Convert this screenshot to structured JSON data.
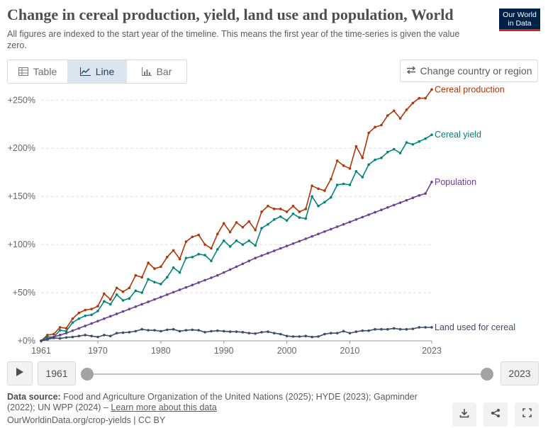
{
  "header": {
    "title": "Change in cereal production, yield, land use and population, World",
    "subtitle": "All figures are indexed to the start year of the timeline. This means the first year of the time-series is given the value zero.",
    "logo_line1": "Our World",
    "logo_line2": "in Data"
  },
  "tabs": [
    {
      "label": "Table",
      "icon": "table-icon",
      "active": false
    },
    {
      "label": "Line",
      "icon": "line-chart-icon",
      "active": true
    },
    {
      "label": "Bar",
      "icon": "bar-chart-icon",
      "active": false
    }
  ],
  "change_country_label": "Change country or region",
  "timeline": {
    "start_year": "1961",
    "end_year": "2023"
  },
  "footer": {
    "source_prefix": "Data source:",
    "source_text": "Food and Agriculture Organization of the United Nations (2025); HYDE (2023); Gapminder (2022); UN WPP (2024) –",
    "learn_more": "Learn more about this data",
    "url_text": "OurWorldinData.org/crop-yields | CC BY"
  },
  "colors": {
    "cereal_production": "#b13507",
    "cereal_yield": "#00847e",
    "population": "#6d3e91",
    "land_used": "#3c4e66"
  },
  "chart_data": {
    "type": "line",
    "x": [
      1961,
      1962,
      1963,
      1964,
      1965,
      1966,
      1967,
      1968,
      1969,
      1970,
      1971,
      1972,
      1973,
      1974,
      1975,
      1976,
      1977,
      1978,
      1979,
      1980,
      1981,
      1982,
      1983,
      1984,
      1985,
      1986,
      1987,
      1988,
      1989,
      1990,
      1991,
      1992,
      1993,
      1994,
      1995,
      1996,
      1997,
      1998,
      1999,
      2000,
      2001,
      2002,
      2003,
      2004,
      2005,
      2006,
      2007,
      2008,
      2009,
      2010,
      2011,
      2012,
      2013,
      2014,
      2015,
      2016,
      2017,
      2018,
      2019,
      2020,
      2021,
      2022,
      2023
    ],
    "xticks": [
      1961,
      1970,
      1980,
      1990,
      2000,
      2010,
      2023
    ],
    "yticks": [
      0,
      50,
      100,
      150,
      200,
      250
    ],
    "ytick_labels": [
      "+0%",
      "+50%",
      "+100%",
      "+150%",
      "+200%",
      "+250%"
    ],
    "ylim": [
      0,
      262
    ],
    "grid": true,
    "series": [
      {
        "name": "Cereal production",
        "color_key": "cereal_production",
        "values": [
          0,
          6,
          7,
          14,
          13,
          23,
          29,
          32,
          33,
          36,
          49,
          43,
          55,
          51,
          55,
          68,
          66,
          81,
          75,
          77,
          87,
          94,
          85,
          103,
          108,
          110,
          100,
          96,
          111,
          122,
          113,
          123,
          118,
          124,
          115,
          134,
          140,
          137,
          137,
          134,
          140,
          134,
          137,
          161,
          158,
          156,
          168,
          187,
          182,
          179,
          202,
          190,
          216,
          222,
          224,
          234,
          239,
          231,
          240,
          247,
          252,
          252,
          261
        ]
      },
      {
        "name": "Cereal yield",
        "color_key": "cereal_yield",
        "values": [
          0,
          4,
          4,
          11,
          10,
          19,
          23,
          26,
          27,
          31,
          41,
          38,
          48,
          42,
          44,
          52,
          50,
          64,
          61,
          59,
          66,
          76,
          71,
          86,
          87,
          90,
          89,
          83,
          95,
          104,
          98,
          104,
          100,
          104,
          99,
          117,
          121,
          126,
          129,
          125,
          132,
          128,
          127,
          150,
          140,
          144,
          149,
          162,
          163,
          162,
          176,
          170,
          183,
          188,
          190,
          196,
          199,
          195,
          206,
          204,
          207,
          210,
          214
        ]
      },
      {
        "name": "Population",
        "color_key": "population",
        "values": [
          0,
          2,
          4,
          6,
          8,
          10.5,
          13,
          15.5,
          18,
          20.5,
          23,
          25.5,
          28,
          30.5,
          33,
          35.5,
          38,
          40.5,
          43,
          45.5,
          48,
          50.5,
          53,
          55.5,
          58,
          60.5,
          63,
          65.5,
          68,
          71,
          74,
          77,
          80,
          83,
          86,
          88.5,
          91,
          93.5,
          96,
          98.5,
          101,
          103.5,
          106,
          108.5,
          111,
          113.5,
          116,
          118.5,
          121,
          123.5,
          126,
          128.5,
          131,
          133.5,
          136,
          138.5,
          141,
          143.5,
          146,
          148.5,
          151,
          153,
          165
        ]
      },
      {
        "name": "Land used for cereal",
        "color_key": "land_used",
        "values": [
          0,
          1.5,
          3,
          2.5,
          3.5,
          4,
          5,
          6,
          5,
          4,
          6,
          5,
          8,
          8.5,
          9,
          10,
          12,
          11,
          11,
          10,
          11.5,
          12,
          10,
          11,
          11.5,
          11,
          9,
          10,
          10.5,
          10,
          9.5,
          9.5,
          9,
          8,
          7.5,
          9,
          9.5,
          8,
          7,
          5,
          4.5,
          4.5,
          5,
          4,
          4.5,
          7,
          8,
          8,
          10,
          8,
          9.5,
          10.5,
          10.5,
          12,
          12,
          12,
          13,
          12,
          12,
          12.5,
          14,
          14,
          14
        ]
      }
    ]
  }
}
